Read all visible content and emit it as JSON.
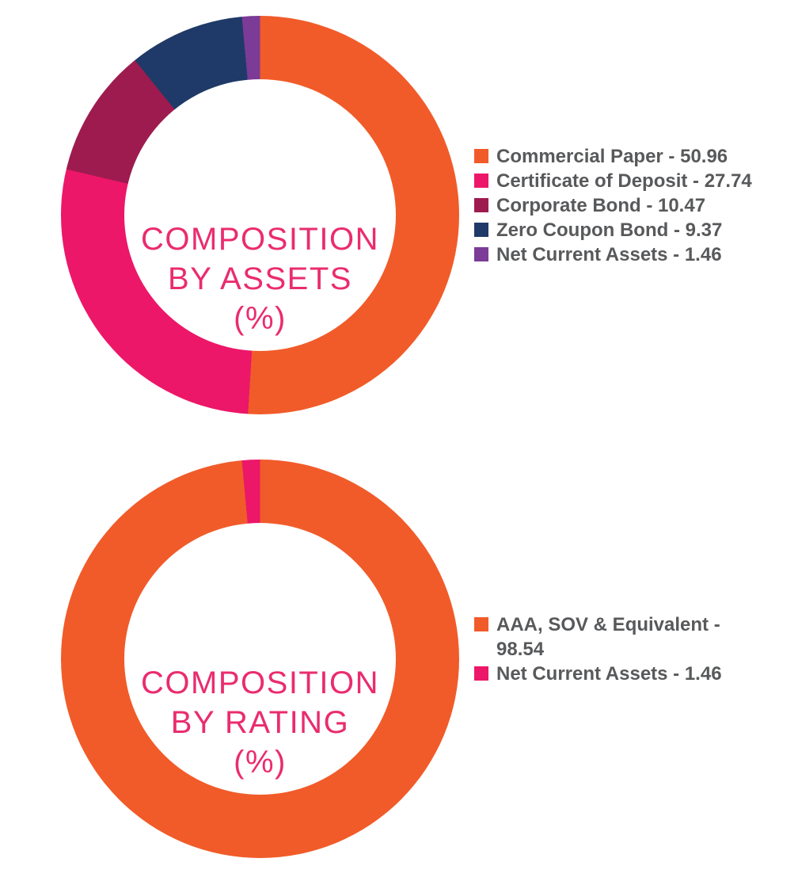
{
  "styles": {
    "background": "#FFFFFF",
    "title_color": "#EA2C6F",
    "legend_text_color": "#58595B"
  },
  "chart_data": [
    {
      "type": "pie",
      "subtype": "donut",
      "title": "COMPOSITION BY ASSETS (%)",
      "title_lines": [
        "COMPOSITION",
        "BY ASSETS",
        "(%)"
      ],
      "legend_position": "right",
      "start_angle_deg": 0,
      "direction": "clockwise",
      "segments": [
        {
          "label": "Commercial Paper",
          "value": 50.96,
          "color": "#F15B29",
          "legend_text": "Commercial Paper - 50.96"
        },
        {
          "label": "Certificate of Deposit",
          "value": 27.74,
          "color": "#EC1768",
          "legend_text": "Certificate of Deposit - 27.74"
        },
        {
          "label": "Corporate Bond",
          "value": 10.47,
          "color": "#9E1B4F",
          "legend_text": "Corporate Bond - 10.47"
        },
        {
          "label": "Zero Coupon Bond",
          "value": 9.37,
          "color": "#1F3A68",
          "legend_text": "Zero Coupon Bond - 9.37"
        },
        {
          "label": "Net Current Assets",
          "value": 1.46,
          "color": "#7B3B97",
          "legend_text": "Net Current Assets - 1.46"
        }
      ]
    },
    {
      "type": "pie",
      "subtype": "donut",
      "title": "COMPOSITION BY RATING (%)",
      "title_lines": [
        "COMPOSITION",
        "BY RATING",
        "(%)"
      ],
      "legend_position": "right",
      "start_angle_deg": 0,
      "direction": "clockwise",
      "segments": [
        {
          "label": "AAA, SOV & Equivalent",
          "value": 98.54,
          "color": "#F15B29",
          "legend_text": "AAA, SOV & Equivalent -\n98.54"
        },
        {
          "label": "Net Current Assets",
          "value": 1.46,
          "color": "#EC1768",
          "legend_text": "Net Current Assets - 1.46"
        }
      ]
    }
  ]
}
